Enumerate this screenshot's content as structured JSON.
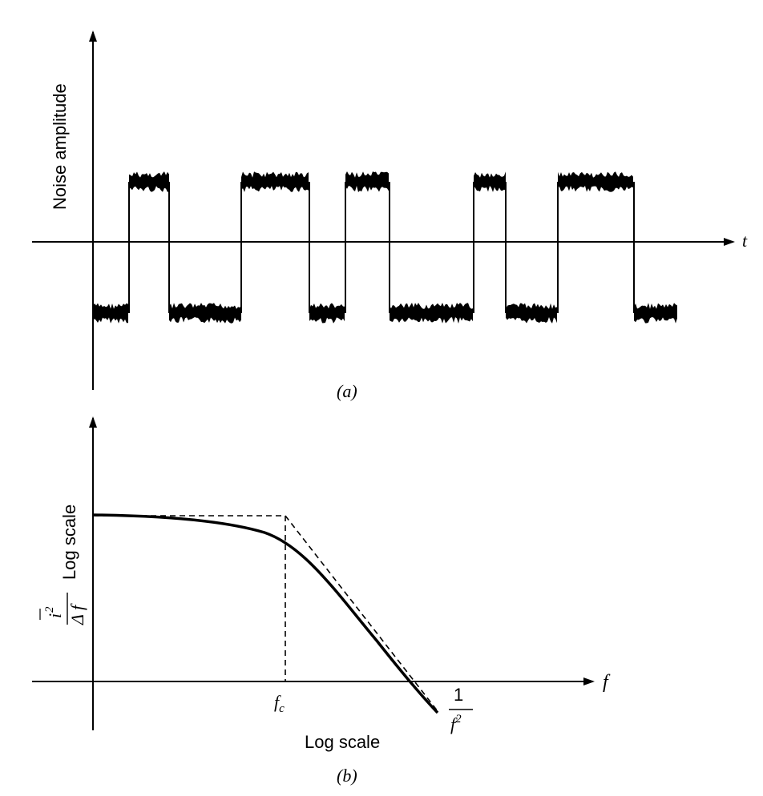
{
  "panel_a": {
    "caption": "(a)",
    "y_label": "Noise amplitude",
    "x_label": "t",
    "signal": {
      "description_levels": {
        "high": 1,
        "low": -1
      },
      "segments": [
        {
          "level": -1,
          "t_start": 0.0,
          "t_end": 0.45
        },
        {
          "level": 1,
          "t_start": 0.45,
          "t_end": 0.95
        },
        {
          "level": -1,
          "t_start": 0.95,
          "t_end": 1.85
        },
        {
          "level": 1,
          "t_start": 1.85,
          "t_end": 2.7
        },
        {
          "level": -1,
          "t_start": 2.7,
          "t_end": 3.15
        },
        {
          "level": 1,
          "t_start": 3.15,
          "t_end": 3.7
        },
        {
          "level": -1,
          "t_start": 3.7,
          "t_end": 4.75
        },
        {
          "level": 1,
          "t_start": 4.75,
          "t_end": 5.15
        },
        {
          "level": -1,
          "t_start": 5.15,
          "t_end": 5.8
        },
        {
          "level": 1,
          "t_start": 5.8,
          "t_end": 6.75
        },
        {
          "level": -1,
          "t_start": 6.75,
          "t_end": 7.3
        }
      ]
    }
  },
  "panel_b": {
    "caption": "(b)",
    "y_label_fraction_num": "i",
    "y_label_fraction_num_exp": "2",
    "y_label_fraction_den": "Δ f",
    "y_label_scale": "Log scale",
    "x_label": "f",
    "x_scale_label": "Log scale",
    "corner_label": "f",
    "corner_label_sub": "c",
    "slope_label_num": "1",
    "slope_label_den": "f",
    "slope_label_den_exp": "2"
  },
  "colors": {
    "ink": "#000000",
    "background": "#ffffff"
  }
}
